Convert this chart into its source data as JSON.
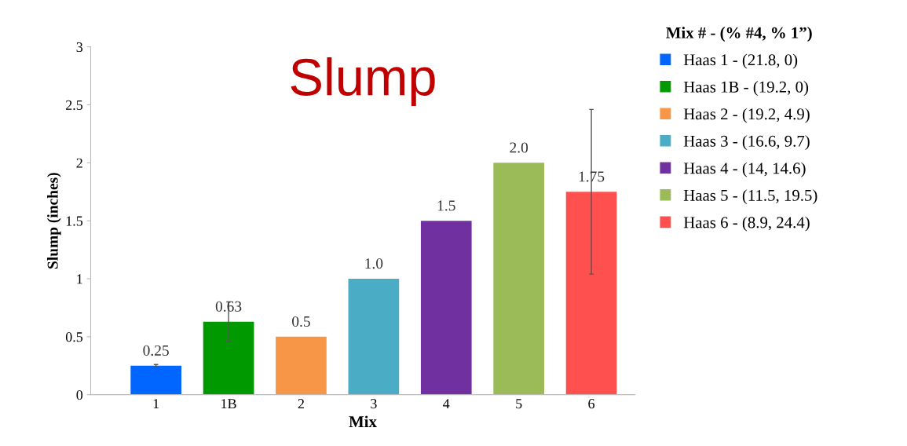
{
  "chart_data": {
    "type": "bar",
    "title": "Slump",
    "xlabel": "Mix",
    "ylabel": "Slump (inches)",
    "legend_title": "Mix # - (% #4, % 1”)",
    "legend": "right",
    "categories": [
      "1",
      "1B",
      "2",
      "3",
      "4",
      "5",
      "6"
    ],
    "ylim": [
      0,
      3
    ],
    "yticks": [
      0,
      0.5,
      1,
      1.5,
      2,
      2.5,
      3
    ],
    "grid": false,
    "series": [
      {
        "name": "Haas 1 - (21.8, 0)",
        "color": "#0066ff",
        "values": [
          0.25,
          null,
          null,
          null,
          null,
          null,
          null
        ],
        "errors": [
          0.01,
          null,
          null,
          null,
          null,
          null,
          null
        ],
        "value_labels": [
          "0.25",
          null,
          null,
          null,
          null,
          null,
          null
        ]
      },
      {
        "name": "Haas 1B - (19.2, 0)",
        "color": "#009900",
        "values": [
          null,
          0.63,
          null,
          null,
          null,
          null,
          null
        ],
        "errors": [
          null,
          0.17,
          null,
          null,
          null,
          null,
          null
        ],
        "value_labels": [
          null,
          "0.63",
          null,
          null,
          null,
          null,
          null
        ]
      },
      {
        "name": "Haas 2 - (19.2, 4.9)",
        "color": "#f79646",
        "values": [
          null,
          null,
          0.5,
          null,
          null,
          null,
          null
        ],
        "value_labels": [
          null,
          null,
          "0.5",
          null,
          null,
          null,
          null
        ]
      },
      {
        "name": "Haas 3 - (16.6, 9.7)",
        "color": "#4bacc6",
        "values": [
          null,
          null,
          null,
          1.0,
          null,
          null,
          null
        ],
        "value_labels": [
          null,
          null,
          null,
          "1.0",
          null,
          null,
          null
        ]
      },
      {
        "name": "Haas 4 - (14, 14.6)",
        "color": "#7030a0",
        "values": [
          null,
          null,
          null,
          null,
          1.5,
          null,
          null
        ],
        "value_labels": [
          null,
          null,
          null,
          null,
          "1.5",
          null,
          null
        ]
      },
      {
        "name": "Haas 5 - (11.5, 19.5)",
        "color": "#9bbb59",
        "values": [
          null,
          null,
          null,
          null,
          null,
          2.0,
          null
        ],
        "value_labels": [
          null,
          null,
          null,
          null,
          null,
          "2.0",
          null
        ]
      },
      {
        "name": "Haas 6 - (8.9, 24.4)",
        "color": "#ff5050",
        "values": [
          null,
          null,
          null,
          null,
          null,
          null,
          1.75
        ],
        "errors": [
          null,
          null,
          null,
          null,
          null,
          null,
          0.71
        ],
        "value_labels": [
          null,
          null,
          null,
          null,
          null,
          null,
          "1.75"
        ]
      }
    ]
  }
}
